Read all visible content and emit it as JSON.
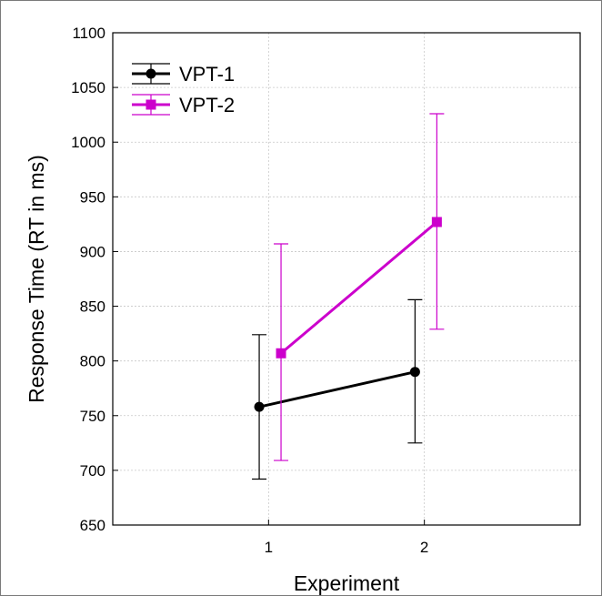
{
  "chart_data": {
    "type": "line",
    "title": "",
    "xlabel": "Experiment",
    "ylabel": "Response Time (RT in ms)",
    "categories": [
      "1",
      "2"
    ],
    "x": [
      1,
      2
    ],
    "xlim": [
      0,
      3
    ],
    "ylim": [
      650,
      1100
    ],
    "yticks": [
      650,
      700,
      750,
      800,
      850,
      900,
      950,
      1000,
      1050,
      1100
    ],
    "xticks": [
      1,
      2
    ],
    "grid": true,
    "legend_position": "top-left",
    "series": [
      {
        "name": "VPT-1",
        "color": "#000000",
        "marker": "circle",
        "values": [
          758,
          790
        ],
        "error_low": [
          692,
          725
        ],
        "error_high": [
          824,
          856
        ]
      },
      {
        "name": "VPT-2",
        "color": "#cc00cc",
        "marker": "square",
        "values": [
          807,
          927
        ],
        "error_low": [
          709,
          829
        ],
        "error_high": [
          907,
          1026
        ]
      }
    ]
  }
}
